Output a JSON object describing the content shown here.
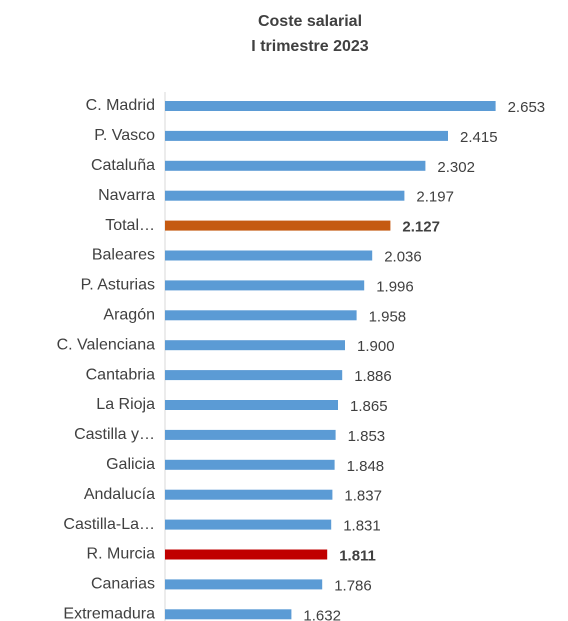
{
  "chart_data": {
    "type": "bar",
    "orientation": "horizontal",
    "title": [
      "Coste salarial",
      "I trimestre 2023"
    ],
    "categories": [
      "C. Madrid",
      "P. Vasco",
      "Cataluña",
      "Navarra",
      "Total…",
      "Baleares",
      "P. Asturias",
      "Aragón",
      "C. Valenciana",
      "Cantabria",
      "La Rioja",
      "Castilla y…",
      "Galicia",
      "Andalucía",
      "Castilla-La…",
      "R. Murcia",
      "Canarias",
      "Extremadura"
    ],
    "values": [
      2653,
      2415,
      2302,
      2197,
      2127,
      2036,
      1996,
      1958,
      1900,
      1886,
      1865,
      1853,
      1848,
      1837,
      1831,
      1811,
      1786,
      1632
    ],
    "value_labels": [
      "2.653",
      "2.415",
      "2.302",
      "2.197",
      "2.127",
      "2.036",
      "1.996",
      "1.958",
      "1.900",
      "1.886",
      "1.865",
      "1.853",
      "1.848",
      "1.837",
      "1.831",
      "1.811",
      "1.786",
      "1.632"
    ],
    "color": "#5b9bd5",
    "colors": [
      "#5b9bd5",
      "#5b9bd5",
      "#5b9bd5",
      "#5b9bd5",
      "#c55a11",
      "#5b9bd5",
      "#5b9bd5",
      "#5b9bd5",
      "#5b9bd5",
      "#5b9bd5",
      "#5b9bd5",
      "#5b9bd5",
      "#5b9bd5",
      "#5b9bd5",
      "#5b9bd5",
      "#c00000",
      "#5b9bd5",
      "#5b9bd5"
    ],
    "xlim": [
      1000,
      3000
    ]
  }
}
